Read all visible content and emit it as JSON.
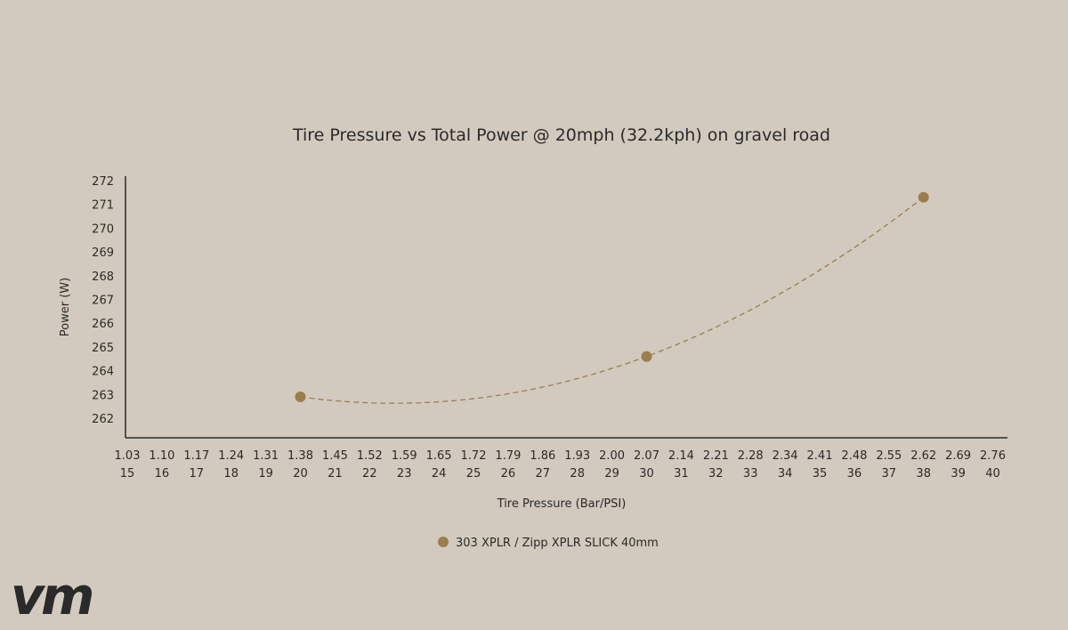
{
  "chart_data": {
    "type": "scatter",
    "title": "Tire Pressure vs Total Power @ 20mph (32.2kph) on gravel road",
    "xlabel": "Tire Pressure (Bar/PSI)",
    "ylabel": "Power (W)",
    "x_ticks_bar": [
      "1.03",
      "1.10",
      "1.17",
      "1.24",
      "1.31",
      "1.38",
      "1.45",
      "1.52",
      "1.59",
      "1.65",
      "1.72",
      "1.79",
      "1.86",
      "1.93",
      "2.00",
      "2.07",
      "2.14",
      "2.21",
      "2.28",
      "2.34",
      "2.41",
      "2.48",
      "2.55",
      "2.62",
      "2.69",
      "2.76"
    ],
    "x_ticks_psi": [
      "15",
      "16",
      "17",
      "18",
      "19",
      "20",
      "21",
      "22",
      "23",
      "24",
      "25",
      "26",
      "27",
      "28",
      "29",
      "30",
      "31",
      "32",
      "33",
      "34",
      "35",
      "36",
      "37",
      "38",
      "39",
      "40"
    ],
    "y_ticks": [
      262,
      263,
      264,
      265,
      266,
      267,
      268,
      269,
      270,
      271,
      272
    ],
    "xlim": [
      15,
      40
    ],
    "ylim": [
      261.5,
      272.5
    ],
    "grid": false,
    "legend_position": "bottom-center",
    "trendline": "dashed",
    "series": [
      {
        "name": "303 XPLR / Zipp XPLR SLICK 40mm",
        "color": "#9a7e4e",
        "x": [
          20,
          30,
          38
        ],
        "y": [
          262.9,
          264.6,
          271.3
        ]
      }
    ]
  }
}
